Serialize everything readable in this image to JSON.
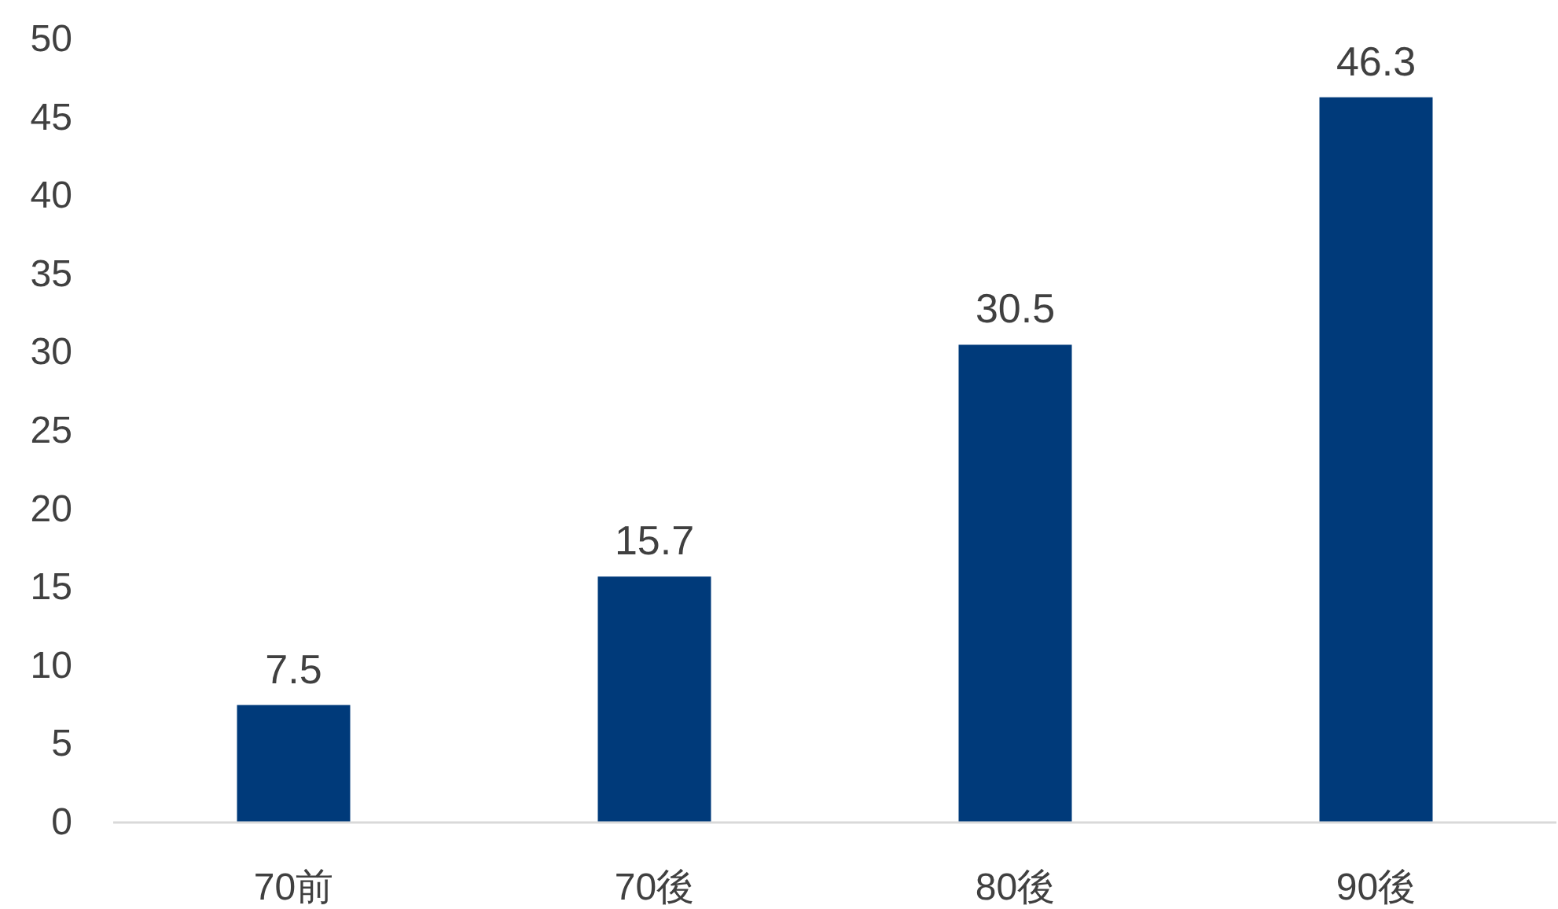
{
  "chart_data": {
    "type": "bar",
    "categories": [
      "70前",
      "70後",
      "80後",
      "90後"
    ],
    "values": [
      7.5,
      15.7,
      30.5,
      46.3
    ],
    "color": "#003a7a",
    "ylim": [
      0,
      50
    ],
    "yticks": [
      0,
      5,
      10,
      15,
      20,
      25,
      30,
      35,
      40,
      45,
      50
    ],
    "data_labels": true
  }
}
